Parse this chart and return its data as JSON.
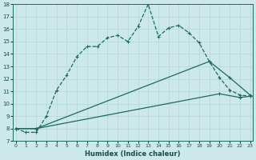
{
  "xlabel": "Humidex (Indice chaleur)",
  "bg_color": "#cce8e8",
  "line_color": "#1a6b5a",
  "xlim": [
    0,
    23
  ],
  "ylim": [
    7,
    18
  ],
  "yticks": [
    7,
    8,
    9,
    10,
    11,
    12,
    13,
    14,
    15,
    16,
    17,
    18
  ],
  "xticks": [
    0,
    1,
    2,
    3,
    4,
    5,
    6,
    7,
    8,
    9,
    10,
    11,
    12,
    13,
    14,
    15,
    16,
    17,
    18,
    19,
    20,
    21,
    22,
    23
  ],
  "series1_x": [
    0,
    1,
    2,
    3,
    4,
    5,
    6,
    7,
    8,
    9,
    10,
    11,
    12,
    13,
    14,
    15,
    16,
    17,
    18,
    19,
    20,
    21,
    22,
    23
  ],
  "series1_y": [
    8.0,
    7.7,
    7.7,
    9.0,
    11.1,
    12.3,
    13.8,
    14.6,
    14.6,
    15.3,
    15.5,
    15.0,
    16.2,
    18.0,
    15.4,
    16.1,
    16.3,
    15.7,
    14.9,
    13.4,
    12.1,
    11.1,
    10.7,
    10.6
  ],
  "series2_x": [
    0,
    2,
    19,
    21,
    23
  ],
  "series2_y": [
    8.0,
    8.0,
    13.4,
    12.1,
    10.7
  ],
  "series3_x": [
    0,
    2,
    20,
    22,
    23
  ],
  "series3_y": [
    8.0,
    8.0,
    10.8,
    10.5,
    10.6
  ],
  "grid_color": "#b0d8d0"
}
